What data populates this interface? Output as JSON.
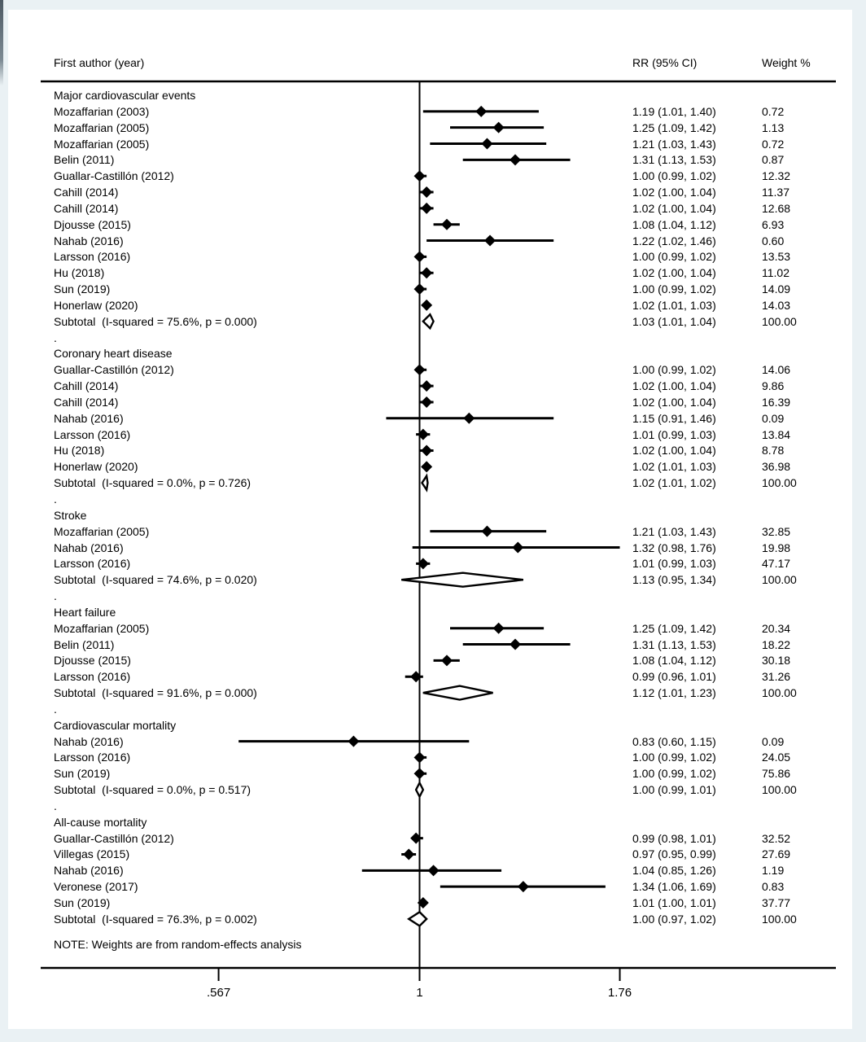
{
  "chart_data": {
    "type": "forest",
    "scale": "log",
    "null_line_value": 1,
    "axis_ticks": [
      {
        "label": ".567",
        "value": 0.567
      },
      {
        "label": "1",
        "value": 1
      },
      {
        "label": "1.76",
        "value": 1.76
      }
    ],
    "columns": {
      "study": "First author (year)",
      "rr": "RR (95% CI)",
      "weight": "Weight %"
    },
    "note": "NOTE: Weights are from random-effects analysis",
    "separator_glyph": ".",
    "sections": [
      {
        "title": "Major cardiovascular events",
        "studies": [
          {
            "label": "Mozaffarian (2003)",
            "rr": 1.19,
            "lo": 1.01,
            "hi": 1.4,
            "rr_text": "1.19 (1.01, 1.40)",
            "weight_text": "0.72"
          },
          {
            "label": "Mozaffarian (2005)",
            "rr": 1.25,
            "lo": 1.09,
            "hi": 1.42,
            "rr_text": "1.25 (1.09, 1.42)",
            "weight_text": "1.13"
          },
          {
            "label": "Mozaffarian (2005)",
            "rr": 1.21,
            "lo": 1.03,
            "hi": 1.43,
            "rr_text": "1.21 (1.03, 1.43)",
            "weight_text": "0.72"
          },
          {
            "label": "Belin (2011)",
            "rr": 1.31,
            "lo": 1.13,
            "hi": 1.53,
            "rr_text": "1.31 (1.13, 1.53)",
            "weight_text": "0.87"
          },
          {
            "label": "Guallar-Castillón (2012)",
            "rr": 1.0,
            "lo": 0.99,
            "hi": 1.02,
            "rr_text": "1.00 (0.99, 1.02)",
            "weight_text": "12.32"
          },
          {
            "label": "Cahill (2014)",
            "rr": 1.02,
            "lo": 1.0,
            "hi": 1.04,
            "rr_text": "1.02 (1.00, 1.04)",
            "weight_text": "11.37"
          },
          {
            "label": "Cahill (2014)",
            "rr": 1.02,
            "lo": 1.0,
            "hi": 1.04,
            "rr_text": "1.02 (1.00, 1.04)",
            "weight_text": "12.68"
          },
          {
            "label": "Djousse (2015)",
            "rr": 1.08,
            "lo": 1.04,
            "hi": 1.12,
            "rr_text": "1.08 (1.04, 1.12)",
            "weight_text": "6.93"
          },
          {
            "label": "Nahab (2016)",
            "rr": 1.22,
            "lo": 1.02,
            "hi": 1.46,
            "rr_text": "1.22 (1.02, 1.46)",
            "weight_text": "0.60"
          },
          {
            "label": "Larsson (2016)",
            "rr": 1.0,
            "lo": 0.99,
            "hi": 1.02,
            "rr_text": "1.00 (0.99, 1.02)",
            "weight_text": "13.53"
          },
          {
            "label": "Hu (2018)",
            "rr": 1.02,
            "lo": 1.0,
            "hi": 1.04,
            "rr_text": "1.02 (1.00, 1.04)",
            "weight_text": "11.02"
          },
          {
            "label": "Sun (2019)",
            "rr": 1.0,
            "lo": 0.99,
            "hi": 1.02,
            "rr_text": "1.00 (0.99, 1.02)",
            "weight_text": "14.09"
          },
          {
            "label": "Honerlaw (2020)",
            "rr": 1.02,
            "lo": 1.01,
            "hi": 1.03,
            "rr_text": "1.02 (1.01, 1.03)",
            "weight_text": "14.03"
          }
        ],
        "subtotal": {
          "label": "Subtotal  (I-squared = 75.6%, p = 0.000)",
          "rr": 1.03,
          "lo": 1.01,
          "hi": 1.04,
          "rr_text": "1.03 (1.01, 1.04)",
          "weight_text": "100.00"
        }
      },
      {
        "title": "Coronary heart disease",
        "studies": [
          {
            "label": "Guallar-Castillón (2012)",
            "rr": 1.0,
            "lo": 0.99,
            "hi": 1.02,
            "rr_text": "1.00 (0.99, 1.02)",
            "weight_text": "14.06"
          },
          {
            "label": "Cahill (2014)",
            "rr": 1.02,
            "lo": 1.0,
            "hi": 1.04,
            "rr_text": "1.02 (1.00, 1.04)",
            "weight_text": "9.86"
          },
          {
            "label": "Cahill (2014)",
            "rr": 1.02,
            "lo": 1.0,
            "hi": 1.04,
            "rr_text": "1.02 (1.00, 1.04)",
            "weight_text": "16.39"
          },
          {
            "label": "Nahab (2016)",
            "rr": 1.15,
            "lo": 0.91,
            "hi": 1.46,
            "rr_text": "1.15 (0.91, 1.46)",
            "weight_text": "0.09"
          },
          {
            "label": "Larsson (2016)",
            "rr": 1.01,
            "lo": 0.99,
            "hi": 1.03,
            "rr_text": "1.01 (0.99, 1.03)",
            "weight_text": "13.84"
          },
          {
            "label": "Hu (2018)",
            "rr": 1.02,
            "lo": 1.0,
            "hi": 1.04,
            "rr_text": "1.02 (1.00, 1.04)",
            "weight_text": "8.78"
          },
          {
            "label": "Honerlaw (2020)",
            "rr": 1.02,
            "lo": 1.01,
            "hi": 1.03,
            "rr_text": "1.02 (1.01, 1.03)",
            "weight_text": "36.98"
          }
        ],
        "subtotal": {
          "label": "Subtotal  (I-squared = 0.0%, p = 0.726)",
          "rr": 1.02,
          "lo": 1.01,
          "hi": 1.02,
          "rr_text": "1.02 (1.01, 1.02)",
          "weight_text": "100.00"
        }
      },
      {
        "title": "Stroke",
        "studies": [
          {
            "label": "Mozaffarian (2005)",
            "rr": 1.21,
            "lo": 1.03,
            "hi": 1.43,
            "rr_text": "1.21 (1.03, 1.43)",
            "weight_text": "32.85"
          },
          {
            "label": "Nahab (2016)",
            "rr": 1.32,
            "lo": 0.98,
            "hi": 1.76,
            "rr_text": "1.32 (0.98, 1.76)",
            "weight_text": "19.98"
          },
          {
            "label": "Larsson (2016)",
            "rr": 1.01,
            "lo": 0.99,
            "hi": 1.03,
            "rr_text": "1.01 (0.99, 1.03)",
            "weight_text": "47.17"
          }
        ],
        "subtotal": {
          "label": "Subtotal  (I-squared = 74.6%, p = 0.020)",
          "rr": 1.13,
          "lo": 0.95,
          "hi": 1.34,
          "rr_text": "1.13 (0.95, 1.34)",
          "weight_text": "100.00"
        }
      },
      {
        "title": "Heart failure",
        "studies": [
          {
            "label": "Mozaffarian (2005)",
            "rr": 1.25,
            "lo": 1.09,
            "hi": 1.42,
            "rr_text": "1.25 (1.09, 1.42)",
            "weight_text": "20.34"
          },
          {
            "label": "Belin (2011)",
            "rr": 1.31,
            "lo": 1.13,
            "hi": 1.53,
            "rr_text": "1.31 (1.13, 1.53)",
            "weight_text": "18.22"
          },
          {
            "label": "Djousse (2015)",
            "rr": 1.08,
            "lo": 1.04,
            "hi": 1.12,
            "rr_text": "1.08 (1.04, 1.12)",
            "weight_text": "30.18"
          },
          {
            "label": "Larsson (2016)",
            "rr": 0.99,
            "lo": 0.96,
            "hi": 1.01,
            "rr_text": "0.99 (0.96, 1.01)",
            "weight_text": "31.26"
          }
        ],
        "subtotal": {
          "label": "Subtotal  (I-squared = 91.6%, p = 0.000)",
          "rr": 1.12,
          "lo": 1.01,
          "hi": 1.23,
          "rr_text": "1.12 (1.01, 1.23)",
          "weight_text": "100.00"
        }
      },
      {
        "title": "Cardiovascular mortality",
        "studies": [
          {
            "label": "Nahab (2016)",
            "rr": 0.83,
            "lo": 0.6,
            "hi": 1.15,
            "rr_text": "0.83 (0.60, 1.15)",
            "weight_text": "0.09"
          },
          {
            "label": "Larsson (2016)",
            "rr": 1.0,
            "lo": 0.99,
            "hi": 1.02,
            "rr_text": "1.00 (0.99, 1.02)",
            "weight_text": "24.05"
          },
          {
            "label": "Sun (2019)",
            "rr": 1.0,
            "lo": 0.99,
            "hi": 1.02,
            "rr_text": "1.00 (0.99, 1.02)",
            "weight_text": "75.86"
          }
        ],
        "subtotal": {
          "label": "Subtotal  (I-squared = 0.0%, p = 0.517)",
          "rr": 1.0,
          "lo": 0.99,
          "hi": 1.01,
          "rr_text": "1.00 (0.99, 1.01)",
          "weight_text": "100.00"
        }
      },
      {
        "title": "All-cause mortality",
        "studies": [
          {
            "label": "Guallar-Castillón (2012)",
            "rr": 0.99,
            "lo": 0.98,
            "hi": 1.01,
            "rr_text": "0.99 (0.98, 1.01)",
            "weight_text": "32.52"
          },
          {
            "label": "Villegas (2015)",
            "rr": 0.97,
            "lo": 0.95,
            "hi": 0.99,
            "rr_text": "0.97 (0.95, 0.99)",
            "weight_text": "27.69"
          },
          {
            "label": "Nahab (2016)",
            "rr": 1.04,
            "lo": 0.85,
            "hi": 1.26,
            "rr_text": "1.04 (0.85, 1.26)",
            "weight_text": "1.19"
          },
          {
            "label": "Veronese (2017)",
            "rr": 1.34,
            "lo": 1.06,
            "hi": 1.69,
            "rr_text": "1.34 (1.06, 1.69)",
            "weight_text": "0.83"
          },
          {
            "label": "Sun (2019)",
            "rr": 1.01,
            "lo": 1.0,
            "hi": 1.01,
            "rr_text": "1.01 (1.00, 1.01)",
            "weight_text": "37.77"
          }
        ],
        "subtotal": {
          "label": "Subtotal  (I-squared = 76.3%, p = 0.002)",
          "rr": 1.0,
          "lo": 0.97,
          "hi": 1.02,
          "rr_text": "1.00 (0.97, 1.02)",
          "weight_text": "100.00"
        }
      }
    ]
  }
}
